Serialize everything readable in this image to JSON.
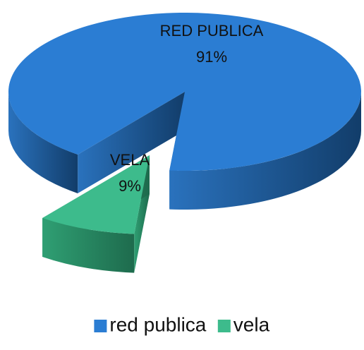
{
  "chart_data": {
    "type": "pie3d",
    "categories": [
      "red publica",
      "vela"
    ],
    "values": [
      91,
      9
    ],
    "data_label_names": [
      "RED PUBLICA",
      "VELA"
    ],
    "value_labels": [
      "91%",
      "9%"
    ],
    "colors": [
      "#2b7dd3",
      "#3dbb8c"
    ],
    "legend": "bottom"
  }
}
